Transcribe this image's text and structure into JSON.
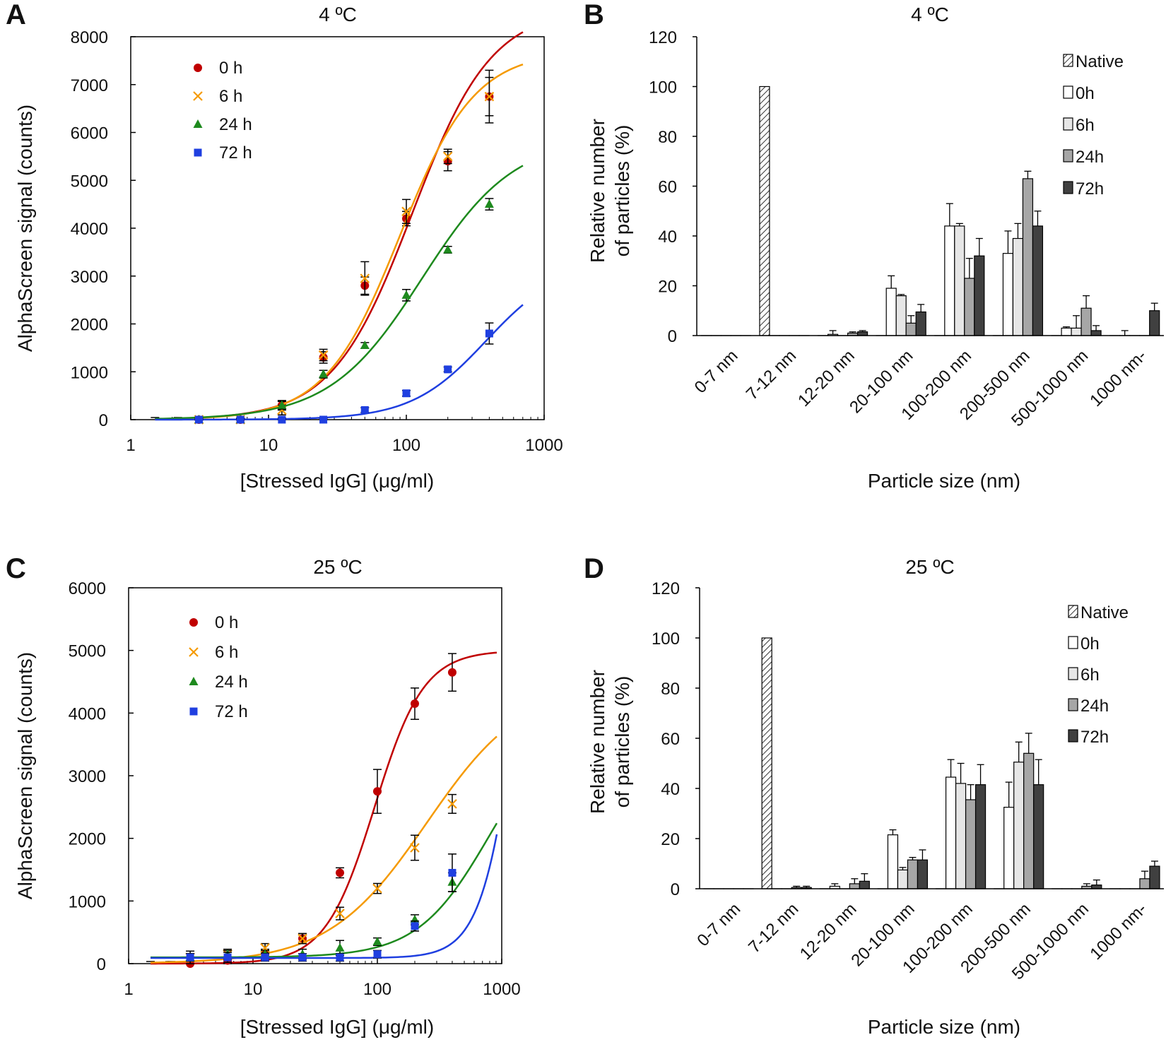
{
  "chart_data": [
    {
      "id": "A",
      "panel_letter": "A",
      "type": "scatter",
      "title": "4 ºC",
      "xlabel": "[Stressed IgG] (μg/ml)",
      "ylabel": "AlphaScreen signal (counts)",
      "xscale": "log",
      "xlim": [
        1,
        1000
      ],
      "ylim": [
        0,
        8000
      ],
      "xticks": [
        "1",
        "10",
        "100",
        "1000"
      ],
      "yticks": [
        "0",
        "1000",
        "2000",
        "3000",
        "4000",
        "5000",
        "6000",
        "7000",
        "8000"
      ],
      "legend_position": "top-left",
      "x": [
        3.125,
        6.25,
        12.5,
        25,
        50,
        100,
        200,
        400
      ],
      "series": [
        {
          "name": "0 h",
          "marker": "circle",
          "color": "#c00000",
          "values": [
            0,
            0,
            300,
            1300,
            2800,
            4200,
            5400,
            6750
          ],
          "errors": [
            30,
            30,
            100,
            120,
            180,
            150,
            200,
            550
          ],
          "fit": {
            "bottom": 0,
            "top": 8600,
            "ec50": 110,
            "hill": 1.5
          }
        },
        {
          "name": "6 h",
          "marker": "x",
          "color": "#f59a00",
          "values": [
            0,
            0,
            200,
            1350,
            2950,
            4350,
            5500,
            6750
          ],
          "errors": [
            30,
            30,
            100,
            120,
            350,
            250,
            150,
            400
          ],
          "fit": {
            "bottom": 0,
            "top": 7700,
            "ec50": 90,
            "hill": 1.6
          }
        },
        {
          "name": "24 h",
          "marker": "triangle",
          "color": "#1e8a1e",
          "values": [
            0,
            0,
            300,
            950,
            1550,
            2600,
            3550,
            4500
          ],
          "errors": [
            30,
            30,
            80,
            80,
            60,
            120,
            70,
            120
          ],
          "fit": {
            "bottom": 0,
            "top": 5900,
            "ec50": 130,
            "hill": 1.3
          }
        },
        {
          "name": "72 h",
          "marker": "square",
          "color": "#1f3fe0",
          "values": [
            0,
            0,
            0,
            0,
            200,
            550,
            1050,
            1800
          ],
          "errors": [
            30,
            30,
            30,
            30,
            50,
            60,
            50,
            220
          ],
          "fit": {
            "bottom": 0,
            "top": 3300,
            "ec50": 380,
            "hill": 1.6
          }
        }
      ]
    },
    {
      "id": "B",
      "panel_letter": "B",
      "type": "bar",
      "title": "4 ºC",
      "xlabel": "Particle size (nm)",
      "ylabel_line1": "Relative number",
      "ylabel_line2": "of particles (%)",
      "ylim": [
        0,
        120
      ],
      "yticks": [
        "0",
        "20",
        "40",
        "60",
        "80",
        "100",
        "120"
      ],
      "legend_position": "top-right",
      "categories": [
        "0-7 nm",
        "7-12 nm",
        "12-20 nm",
        "20-100 nm",
        "100-200 nm",
        "200-500 nm",
        "500-1000 nm",
        "1000 nm-"
      ],
      "series": [
        {
          "name": "Native",
          "fill": "hatch",
          "values": [
            0,
            100,
            0,
            0,
            0,
            0,
            0,
            0
          ],
          "errors": [
            0,
            0,
            0,
            0,
            0,
            0,
            0,
            0
          ]
        },
        {
          "name": "0h",
          "fill": "#ffffff",
          "values": [
            0,
            0,
            0.5,
            19,
            44,
            33,
            3,
            0
          ],
          "errors": [
            0,
            0,
            1.5,
            5,
            9,
            9,
            0.5,
            2
          ]
        },
        {
          "name": "6h",
          "fill": "#e6e6e6",
          "values": [
            0,
            0,
            0,
            16,
            44,
            39,
            3,
            0
          ],
          "errors": [
            0,
            0,
            0,
            0.5,
            1,
            6,
            5,
            0
          ]
        },
        {
          "name": "24h",
          "fill": "#a6a6a6",
          "values": [
            0,
            0,
            1,
            5,
            23,
            63,
            11,
            0
          ],
          "errors": [
            0,
            0,
            0.5,
            3,
            8,
            3,
            5,
            0
          ]
        },
        {
          "name": "72h",
          "fill": "#404040",
          "values": [
            0,
            0,
            1.5,
            9.5,
            32,
            44,
            2,
            10
          ],
          "errors": [
            0,
            0,
            0.5,
            3,
            7,
            6,
            2,
            3
          ]
        }
      ]
    },
    {
      "id": "C",
      "panel_letter": "C",
      "type": "scatter",
      "title": "25 ºC",
      "xlabel": "[Stressed IgG] (μg/ml)",
      "ylabel": "AlphaScreen signal (counts)",
      "xscale": "log",
      "xlim": [
        1,
        1000
      ],
      "ylim": [
        0,
        6000
      ],
      "xticks": [
        "1",
        "10",
        "100",
        "1000"
      ],
      "yticks": [
        "0",
        "1000",
        "2000",
        "3000",
        "4000",
        "5000",
        "6000"
      ],
      "legend_position": "top-left",
      "x": [
        3.125,
        6.25,
        12.5,
        25,
        50,
        100,
        200,
        400
      ],
      "series": [
        {
          "name": "0 h",
          "marker": "circle",
          "color": "#c00000",
          "values": [
            0,
            50,
            150,
            400,
            1450,
            2750,
            4150,
            4650
          ],
          "errors": [
            40,
            60,
            80,
            80,
            80,
            350,
            250,
            300
          ],
          "fit": {
            "bottom": 0,
            "top": 5000,
            "ec50": 95,
            "hill": 2.2
          }
        },
        {
          "name": "6 h",
          "marker": "x",
          "color": "#f59a00",
          "values": [
            100,
            150,
            250,
            400,
            800,
            1200,
            1850,
            2550
          ],
          "errors": [
            60,
            80,
            70,
            80,
            100,
            80,
            200,
            150
          ],
          "fit": {
            "bottom": 0,
            "top": 4500,
            "ec50": 250,
            "hill": 1.1
          }
        },
        {
          "name": "24 h",
          "marker": "triangle",
          "color": "#1e8a1e",
          "values": [
            100,
            150,
            150,
            150,
            250,
            350,
            700,
            1300
          ],
          "errors": [
            60,
            60,
            60,
            80,
            120,
            60,
            80,
            150
          ],
          "fit": {
            "bottom": 100,
            "top": 4000,
            "ec50": 800,
            "hill": 1.5
          }
        },
        {
          "name": "72 h",
          "marker": "square",
          "color": "#1f3fe0",
          "values": [
            100,
            100,
            100,
            100,
            100,
            150,
            600,
            1450
          ],
          "errors": [
            100,
            80,
            60,
            60,
            60,
            60,
            80,
            300
          ],
          "fit": {
            "bottom": 90,
            "top": 10000,
            "ec50": 1500,
            "hill": 2.8
          }
        }
      ]
    },
    {
      "id": "D",
      "panel_letter": "D",
      "type": "bar",
      "title": "25 ºC",
      "xlabel": "Particle size (nm)",
      "ylabel_line1": "Relative number",
      "ylabel_line2": "of particles (%)",
      "ylim": [
        0,
        120
      ],
      "yticks": [
        "0",
        "20",
        "40",
        "60",
        "80",
        "100",
        "120"
      ],
      "legend_position": "top-right",
      "categories": [
        "0-7 nm",
        "7-12 nm",
        "12-20 nm",
        "20-100 nm",
        "100-200 nm",
        "200-500 nm",
        "500-1000 nm",
        "1000 nm-"
      ],
      "series": [
        {
          "name": "Native",
          "fill": "hatch",
          "values": [
            0,
            100,
            0,
            0,
            0,
            0,
            0,
            0
          ],
          "errors": [
            0,
            0,
            0,
            0,
            0,
            0,
            0,
            0
          ]
        },
        {
          "name": "0h",
          "fill": "#ffffff",
          "values": [
            0,
            0,
            1,
            21.5,
            44.5,
            32.5,
            0,
            0
          ],
          "errors": [
            0,
            0,
            1,
            2,
            7,
            10,
            0,
            0
          ]
        },
        {
          "name": "6h",
          "fill": "#e6e6e6",
          "values": [
            0,
            0,
            0,
            7.5,
            42,
            50.5,
            0,
            0
          ],
          "errors": [
            0,
            0,
            0,
            1,
            8,
            8,
            0,
            0
          ]
        },
        {
          "name": "24h",
          "fill": "#a6a6a6",
          "values": [
            0,
            0.5,
            2,
            11.5,
            35.5,
            54,
            1,
            4
          ],
          "errors": [
            0,
            0.5,
            2,
            1,
            6,
            8,
            1,
            3
          ]
        },
        {
          "name": "72h",
          "fill": "#404040",
          "values": [
            0,
            0.5,
            3,
            11.5,
            41.5,
            41.5,
            1.5,
            9
          ],
          "errors": [
            0,
            0.5,
            3,
            4,
            8,
            10,
            2,
            2
          ]
        }
      ]
    }
  ]
}
